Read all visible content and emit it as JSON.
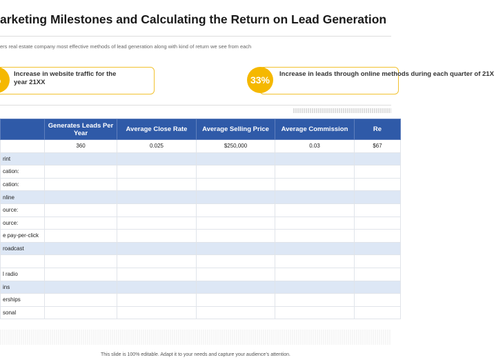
{
  "header": {
    "title": "arketing Milestones and Calculating the Return on Lead Generation",
    "subtitle": "ers real estate company most effective methods of lead generation along with kind of return we see from each"
  },
  "callouts": [
    {
      "badge": "%",
      "text": "Increase in website traffic for the year 21XX"
    },
    {
      "badge": "33%",
      "text": "Increase in leads through online methods during each quarter of 21X"
    }
  ],
  "table": {
    "columns": [
      null,
      "Generates Leads Per Year",
      "Average Close Rate",
      "Average Selling Price",
      "Average Commission",
      "Re"
    ],
    "values_row": [
      null,
      "360",
      "0.025",
      "$250,000",
      "0.03",
      "$67"
    ],
    "rows": [
      "rint",
      "cation:",
      "cation:",
      "nline",
      "ource:",
      "ource:",
      "e pay-per-click",
      "roadcast",
      null,
      "l radio",
      "ins",
      "erships",
      "sonal"
    ],
    "shaded_rows": [
      0,
      3,
      7,
      10
    ]
  },
  "footer": "This slide is 100% editable.  Adapt it to your needs and capture your audience’s attention."
}
